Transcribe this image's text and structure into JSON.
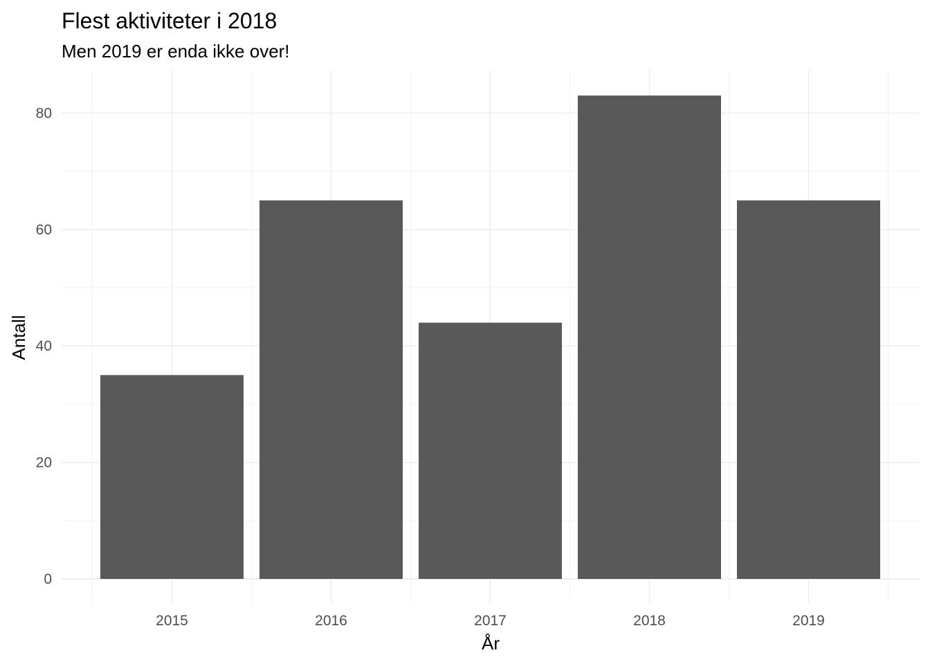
{
  "chart_data": {
    "type": "bar",
    "title": "Flest aktiviteter i 2018",
    "subtitle": "Men 2019 er enda ikke over!",
    "xlabel": "År",
    "ylabel": "Antall",
    "categories": [
      "2015",
      "2016",
      "2017",
      "2018",
      "2019"
    ],
    "values": [
      35,
      65,
      44,
      83,
      65
    ],
    "ylim": [
      0,
      86
    ],
    "yticks": [
      0,
      20,
      40,
      60,
      80
    ],
    "grid": true,
    "legend": "none",
    "bar_color": "#595959",
    "grid_color": "#ebebeb"
  }
}
